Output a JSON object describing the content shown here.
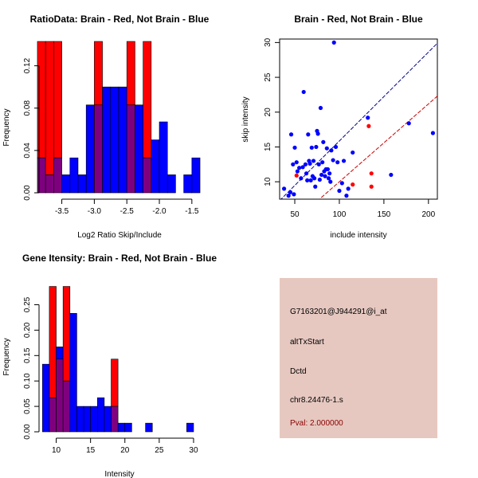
{
  "colors": {
    "brain": "#ff0000",
    "not_brain": "#0000ff",
    "overlap": "#7f007f",
    "fit_brain": "#cc0000",
    "fit_not_brain": "#000099",
    "panel_bg": "#e6c8c0",
    "pval": "#8b0000"
  },
  "chart_data": [
    {
      "type": "bar",
      "title": "RatioData: Brain - Red, Not Brain - Blue",
      "xlabel": "Log2 Ratio Skip/Include",
      "ylabel": "Frequency",
      "xlim": [
        -3.85,
        -1.4
      ],
      "ylim": [
        0,
        0.14
      ],
      "xticks": [
        -3.5,
        -3.0,
        -2.5,
        -2.0,
        -1.5
      ],
      "xtick_labels": [
        "-3.5",
        "-3.0",
        "-2.5",
        "-2.0",
        "-1.5"
      ],
      "yticks": [
        0.0,
        0.04,
        0.08,
        0.12
      ],
      "ytick_labels": [
        "0.00",
        "0.04",
        "0.08",
        "0.12"
      ],
      "bin_width": 0.125,
      "bin_starts": [
        -3.875,
        -3.75,
        -3.625,
        -3.5,
        -3.375,
        -3.25,
        -3.125,
        -3.0,
        -2.875,
        -2.75,
        -2.625,
        -2.5,
        -2.375,
        -2.25,
        -2.125,
        -2.0,
        -1.875,
        -1.75,
        -1.625,
        -1.5
      ],
      "series": [
        {
          "name": "Brain",
          "values": [
            0.143,
            0.143,
            0.143,
            0,
            0,
            0,
            0,
            0.143,
            0,
            0,
            0,
            0.143,
            0,
            0.143,
            0,
            0,
            0,
            0,
            0,
            0
          ]
        },
        {
          "name": "Not Brain",
          "values": [
            0.033,
            0.017,
            0.033,
            0.017,
            0.033,
            0.017,
            0.083,
            0.083,
            0.1,
            0.1,
            0.1,
            0.083,
            0.083,
            0.033,
            0.05,
            0.067,
            0.017,
            0,
            0.017,
            0.033
          ]
        }
      ]
    },
    {
      "type": "scatter",
      "title": "Brain - Red, Not Brain - Blue",
      "xlabel": "include intensity",
      "ylabel": "skip intensity",
      "xlim": [
        33,
        210
      ],
      "ylim": [
        7.5,
        30.5
      ],
      "xticks": [
        50,
        100,
        150,
        200
      ],
      "xtick_labels": [
        "50",
        "100",
        "150",
        "200"
      ],
      "yticks": [
        10,
        15,
        20,
        25,
        30
      ],
      "ytick_labels": [
        "10",
        "15",
        "20",
        "25",
        "30"
      ],
      "series": [
        {
          "name": "Not Brain",
          "points": [
            [
              38,
              9
            ],
            [
              43,
              8
            ],
            [
              45,
              8.5
            ],
            [
              46,
              16.8
            ],
            [
              48,
              12.5
            ],
            [
              49,
              8.2
            ],
            [
              50,
              14.9
            ],
            [
              52,
              12.8
            ],
            [
              53,
              11.5
            ],
            [
              55,
              12
            ],
            [
              57,
              10.5
            ],
            [
              59,
              12.1
            ],
            [
              60,
              22.9
            ],
            [
              62,
              12.5
            ],
            [
              63,
              11.2
            ],
            [
              64,
              10.2
            ],
            [
              65,
              16.8
            ],
            [
              66,
              13
            ],
            [
              67,
              12.6
            ],
            [
              68,
              10.2
            ],
            [
              69,
              14.9
            ],
            [
              70,
              10.8
            ],
            [
              71,
              13
            ],
            [
              72,
              10.5
            ],
            [
              73,
              9.3
            ],
            [
              74,
              15
            ],
            [
              75,
              17.3
            ],
            [
              76,
              16.9
            ],
            [
              77,
              12.5
            ],
            [
              78,
              10.3
            ],
            [
              79,
              20.6
            ],
            [
              80,
              11
            ],
            [
              81,
              12.8
            ],
            [
              82,
              15.7
            ],
            [
              83,
              11.5
            ],
            [
              84,
              10.8
            ],
            [
              85,
              11.8
            ],
            [
              86,
              14.8
            ],
            [
              87,
              11.8
            ],
            [
              88,
              10.5
            ],
            [
              89,
              11.2
            ],
            [
              90,
              10
            ],
            [
              91,
              14.5
            ],
            [
              93,
              13.1
            ],
            [
              94,
              30
            ],
            [
              96,
              15
            ],
            [
              98,
              12.8
            ],
            [
              100,
              8.7
            ],
            [
              103,
              9.8
            ],
            [
              105,
              13
            ],
            [
              108,
              8
            ],
            [
              110,
              9
            ],
            [
              115,
              14.2
            ],
            [
              132,
              19.2
            ],
            [
              158,
              11
            ],
            [
              178,
              18.4
            ],
            [
              205,
              17
            ]
          ]
        },
        {
          "name": "Brain",
          "points": [
            [
              52,
              10.9
            ],
            [
              115,
              9.6
            ],
            [
              133,
              18
            ],
            [
              136,
              11.2
            ],
            [
              136,
              9.3
            ]
          ]
        }
      ],
      "fit_lines": [
        {
          "name": "Not Brain fit",
          "x": [
            33,
            210
          ],
          "y": [
            7.3,
            29.9
          ]
        },
        {
          "name": "Brain fit",
          "x": [
            75,
            210
          ],
          "y": [
            7.2,
            22.3
          ]
        }
      ]
    },
    {
      "type": "bar",
      "title": "Gene Itensity: Brain - Red, Not Brain - Blue",
      "xlabel": "Intensity",
      "ylabel": "Frequency",
      "xlim": [
        7.5,
        30.7
      ],
      "ylim": [
        0,
        0.29
      ],
      "xticks": [
        10,
        15,
        20,
        25,
        30
      ],
      "xtick_labels": [
        "10",
        "15",
        "20",
        "25",
        "30"
      ],
      "yticks": [
        0.0,
        0.05,
        0.1,
        0.15,
        0.2,
        0.25
      ],
      "ytick_labels": [
        "0.00",
        "0.05",
        "0.10",
        "0.15",
        "0.20",
        "0.25"
      ],
      "bin_width": 1,
      "bin_starts": [
        8,
        9,
        10,
        11,
        12,
        13,
        14,
        15,
        16,
        17,
        18,
        19,
        20,
        21,
        22,
        23,
        24,
        25,
        26,
        27,
        28,
        29
      ],
      "series": [
        {
          "name": "Brain",
          "values": [
            0,
            0.286,
            0.143,
            0.286,
            0,
            0,
            0,
            0,
            0,
            0,
            0.143,
            0,
            0,
            0,
            0,
            0,
            0,
            0,
            0,
            0,
            0,
            0
          ]
        },
        {
          "name": "Not Brain",
          "values": [
            0.133,
            0.067,
            0.167,
            0.1,
            0.233,
            0.05,
            0.05,
            0.05,
            0.067,
            0.05,
            0.05,
            0.017,
            0.017,
            0,
            0,
            0.017,
            0,
            0,
            0,
            0,
            0,
            0.017
          ]
        }
      ]
    }
  ],
  "info_panel": {
    "probe_id": "G7163201@J944291@i_at",
    "event_type": "altTxStart",
    "gene": "Dctd",
    "location": "chr8.24476-1.s",
    "pval": "Pval: 2.000000"
  }
}
